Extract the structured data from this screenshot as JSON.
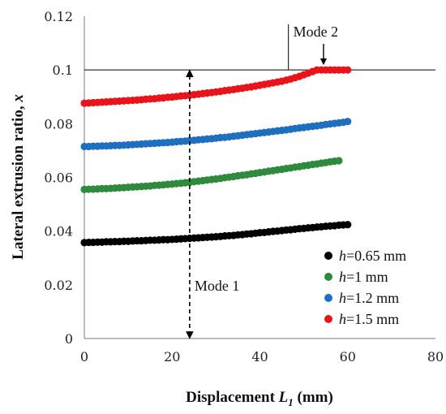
{
  "chart_data": {
    "type": "scatter",
    "xlabel_main": "Displacement ",
    "xlabel_symbol": "L",
    "xlabel_sub": "1",
    "xlabel_unit": " (mm)",
    "ylabel_main": "Lateral extrusion ratio, ",
    "ylabel_symbol": "x",
    "xlim": [
      0,
      80
    ],
    "ylim": [
      0,
      0.12
    ],
    "x_ticks": [
      "0",
      "20",
      "40",
      "60",
      "80"
    ],
    "y_ticks": [
      "0",
      "0.02",
      "0.04",
      "0.06",
      "0.08",
      "0.1",
      "0.12"
    ],
    "grid": false,
    "legend_position": "bottom-right",
    "series": [
      {
        "name": "h=0.65 mm",
        "name_symbol": "h",
        "name_rest": "=0.65 mm",
        "color": "#000000",
        "x": [
          0,
          1,
          2,
          3,
          4,
          5,
          6,
          7,
          8,
          9,
          10,
          11,
          12,
          13,
          14,
          15,
          16,
          17,
          18,
          19,
          20,
          21,
          22,
          23,
          24,
          25,
          26,
          27,
          28,
          29,
          30,
          31,
          32,
          33,
          34,
          35,
          36,
          37,
          38,
          39,
          40,
          41,
          42,
          43,
          44,
          45,
          46,
          47,
          48,
          49,
          50,
          51,
          52,
          53,
          54,
          55,
          56,
          57,
          58,
          59,
          60
        ],
        "y": [
          0.0357,
          0.0358,
          0.0358,
          0.0359,
          0.0359,
          0.036,
          0.036,
          0.0361,
          0.0361,
          0.0362,
          0.0362,
          0.0363,
          0.0364,
          0.0364,
          0.0365,
          0.0366,
          0.0366,
          0.0367,
          0.0368,
          0.0368,
          0.0369,
          0.037,
          0.0371,
          0.0372,
          0.0373,
          0.0374,
          0.0375,
          0.0376,
          0.0377,
          0.0378,
          0.0379,
          0.038,
          0.0382,
          0.0383,
          0.0384,
          0.0386,
          0.0387,
          0.0389,
          0.039,
          0.0392,
          0.0394,
          0.0395,
          0.0397,
          0.0399,
          0.04,
          0.0402,
          0.0404,
          0.0405,
          0.0407,
          0.0409,
          0.041,
          0.0412,
          0.0413,
          0.0415,
          0.0416,
          0.0418,
          0.0419,
          0.042,
          0.0422,
          0.0423,
          0.0424
        ]
      },
      {
        "name": "h=1 mm",
        "name_symbol": "h",
        "name_rest": "=1 mm",
        "color": "#2e8b3e",
        "x": [
          0,
          1,
          2,
          3,
          4,
          5,
          6,
          7,
          8,
          9,
          10,
          11,
          12,
          13,
          14,
          15,
          16,
          17,
          18,
          19,
          20,
          21,
          22,
          23,
          24,
          25,
          26,
          27,
          28,
          29,
          30,
          31,
          32,
          33,
          34,
          35,
          36,
          37,
          38,
          39,
          40,
          41,
          42,
          43,
          44,
          45,
          46,
          47,
          48,
          49,
          50,
          51,
          52,
          53,
          54,
          55,
          56,
          57,
          58
        ],
        "y": [
          0.0555,
          0.0556,
          0.0556,
          0.0557,
          0.0558,
          0.0558,
          0.0559,
          0.056,
          0.0561,
          0.0562,
          0.0563,
          0.0564,
          0.0565,
          0.0566,
          0.0567,
          0.0568,
          0.057,
          0.0571,
          0.0572,
          0.0574,
          0.0575,
          0.0577,
          0.0578,
          0.058,
          0.0582,
          0.0584,
          0.0586,
          0.0588,
          0.059,
          0.0592,
          0.0594,
          0.0596,
          0.0599,
          0.0601,
          0.0603,
          0.0606,
          0.0608,
          0.061,
          0.0613,
          0.0615,
          0.0618,
          0.062,
          0.0623,
          0.0625,
          0.0628,
          0.063,
          0.0633,
          0.0635,
          0.0638,
          0.064,
          0.0643,
          0.0645,
          0.0648,
          0.065,
          0.0653,
          0.0655,
          0.0658,
          0.066,
          0.0662
        ]
      },
      {
        "name": "h=1.2 mm",
        "name_symbol": "h",
        "name_rest": "=1.2 mm",
        "color": "#1f6fc0",
        "x": [
          0,
          1,
          2,
          3,
          4,
          5,
          6,
          7,
          8,
          9,
          10,
          11,
          12,
          13,
          14,
          15,
          16,
          17,
          18,
          19,
          20,
          21,
          22,
          23,
          24,
          25,
          26,
          27,
          28,
          29,
          30,
          31,
          32,
          33,
          34,
          35,
          36,
          37,
          38,
          39,
          40,
          41,
          42,
          43,
          44,
          45,
          46,
          47,
          48,
          49,
          50,
          51,
          52,
          53,
          54,
          55,
          56,
          57,
          58,
          59,
          60
        ],
        "y": [
          0.0715,
          0.0715,
          0.0716,
          0.0716,
          0.0717,
          0.0717,
          0.0718,
          0.0719,
          0.0719,
          0.072,
          0.0721,
          0.0722,
          0.0723,
          0.0724,
          0.0725,
          0.0726,
          0.0727,
          0.0728,
          0.0729,
          0.073,
          0.0731,
          0.0733,
          0.0734,
          0.0735,
          0.0737,
          0.0738,
          0.074,
          0.0741,
          0.0743,
          0.0744,
          0.0746,
          0.0748,
          0.0749,
          0.0751,
          0.0753,
          0.0755,
          0.0757,
          0.0759,
          0.0761,
          0.0763,
          0.0765,
          0.0767,
          0.0769,
          0.0771,
          0.0773,
          0.0775,
          0.0777,
          0.0779,
          0.0782,
          0.0784,
          0.0786,
          0.0788,
          0.079,
          0.0792,
          0.0794,
          0.0797,
          0.0799,
          0.0801,
          0.0803,
          0.0805,
          0.0808
        ]
      },
      {
        "name": "h=1.5 mm",
        "name_symbol": "h",
        "name_rest": "=1.5 mm",
        "color": "#e8141a",
        "x": [
          0,
          1,
          2,
          3,
          4,
          5,
          6,
          7,
          8,
          9,
          10,
          11,
          12,
          13,
          14,
          15,
          16,
          17,
          18,
          19,
          20,
          21,
          22,
          23,
          24,
          25,
          26,
          27,
          28,
          29,
          30,
          31,
          32,
          33,
          34,
          35,
          36,
          37,
          38,
          39,
          40,
          41,
          42,
          43,
          44,
          45,
          46,
          47,
          48,
          49,
          50,
          51,
          52,
          53,
          54,
          55,
          56,
          57,
          58,
          59,
          60
        ],
        "y": [
          0.0876,
          0.0877,
          0.0878,
          0.0879,
          0.088,
          0.0881,
          0.0882,
          0.0883,
          0.0884,
          0.0885,
          0.0886,
          0.0887,
          0.0888,
          0.0889,
          0.0891,
          0.0892,
          0.0893,
          0.0895,
          0.0896,
          0.0898,
          0.0899,
          0.0901,
          0.0903,
          0.0904,
          0.0906,
          0.0908,
          0.091,
          0.0912,
          0.0914,
          0.0916,
          0.0918,
          0.092,
          0.0923,
          0.0925,
          0.0927,
          0.093,
          0.0932,
          0.0935,
          0.0937,
          0.094,
          0.0943,
          0.0946,
          0.0949,
          0.0952,
          0.0955,
          0.0958,
          0.0962,
          0.0966,
          0.0971,
          0.0976,
          0.0982,
          0.0988,
          0.0994,
          0.1,
          0.1,
          0.1,
          0.1,
          0.1,
          0.1,
          0.1,
          0.1
        ]
      }
    ],
    "reference_line": {
      "y": 0.1
    },
    "annotations": {
      "mode1_label": "Mode 1",
      "mode1_x": 24,
      "mode1_y_from": 0,
      "mode1_y_to": 0.1,
      "mode2_label": "Mode 2",
      "mode2_marker_x": 46.5,
      "mode2_arrow_x": 54.5
    }
  }
}
